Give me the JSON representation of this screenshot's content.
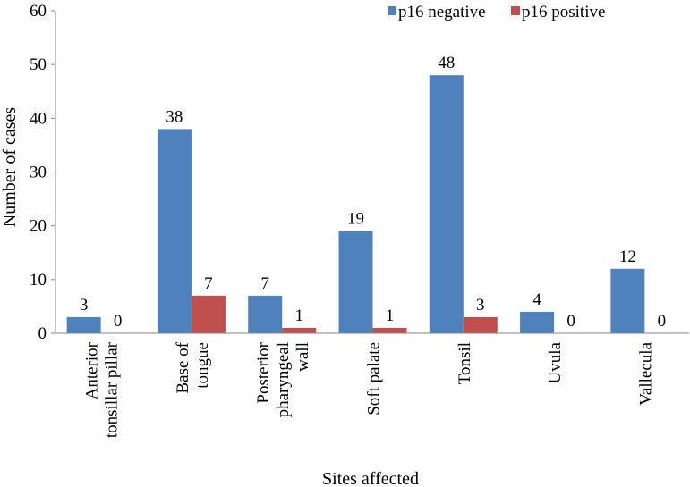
{
  "chart_data": {
    "type": "bar",
    "categories": [
      [
        "Anterior",
        "tonsillar pillar"
      ],
      [
        "Base of",
        "tongue"
      ],
      [
        "Posterior",
        "pharyngeal",
        "wall"
      ],
      [
        "Soft palate"
      ],
      [
        "Tonsil"
      ],
      [
        "Uvula"
      ],
      [
        "Vallecula"
      ]
    ],
    "series": [
      {
        "name": "p16 negative",
        "color": "#4F81BD",
        "values": [
          3,
          38,
          7,
          19,
          48,
          4,
          12
        ]
      },
      {
        "name": "p16 positive",
        "color": "#C0504D",
        "values": [
          0,
          7,
          1,
          1,
          3,
          0,
          0
        ]
      }
    ],
    "xlabel": "Sites affected",
    "ylabel": "Number of cases",
    "ylim": [
      0,
      60
    ],
    "yticks": [
      0,
      10,
      20,
      30,
      40,
      50,
      60
    ],
    "grid": false,
    "legend_position": "top-right"
  }
}
